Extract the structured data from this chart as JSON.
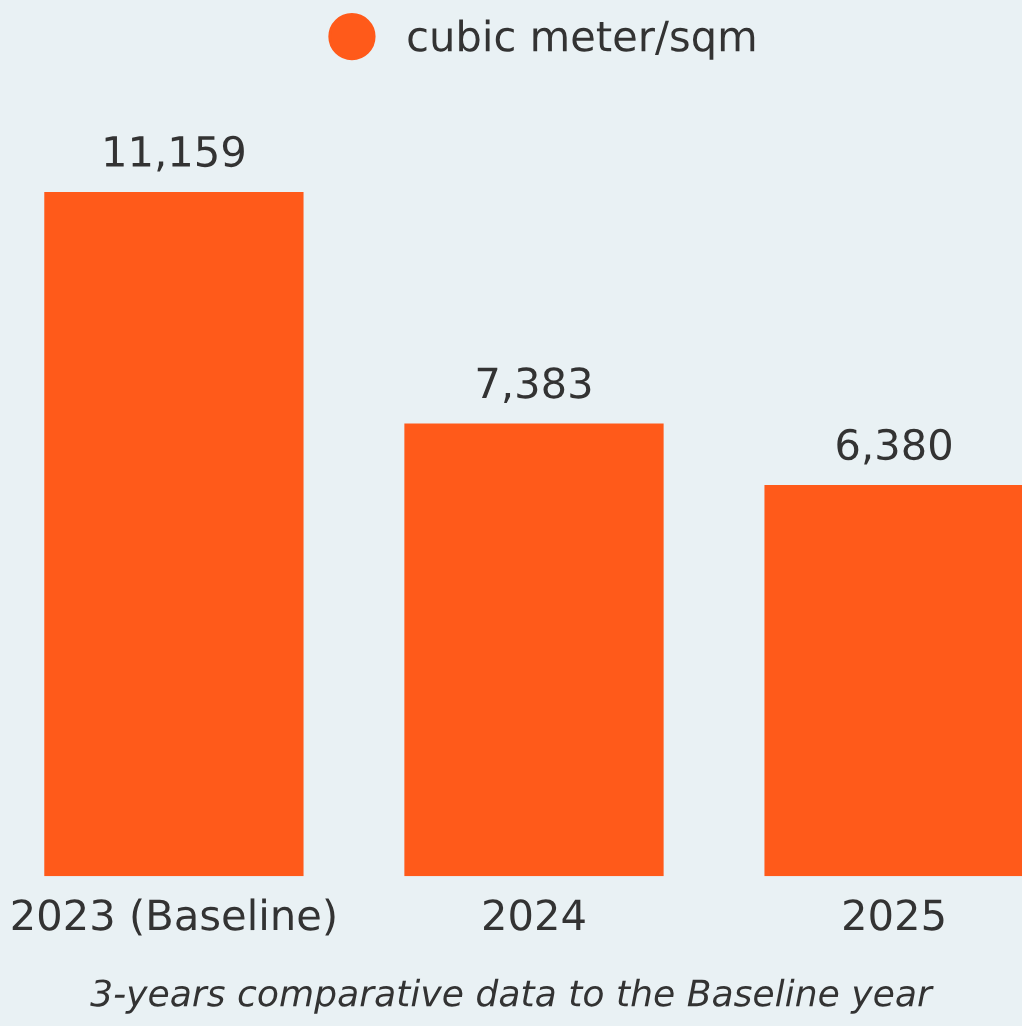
{
  "chart_data": {
    "type": "bar",
    "categories": [
      "2023 (Baseline)",
      "2024",
      "2025"
    ],
    "series": [
      {
        "name": "cubic meter/sqm",
        "color": "#ff5a1a",
        "values": [
          11159,
          7383,
          6380
        ],
        "value_labels": [
          "11,159",
          "7,383",
          "6,380"
        ]
      }
    ],
    "tick_labels": "x",
    "grid": false,
    "legend": "top",
    "annotations": [
      "3-years comparative data to the Baseline year"
    ]
  }
}
